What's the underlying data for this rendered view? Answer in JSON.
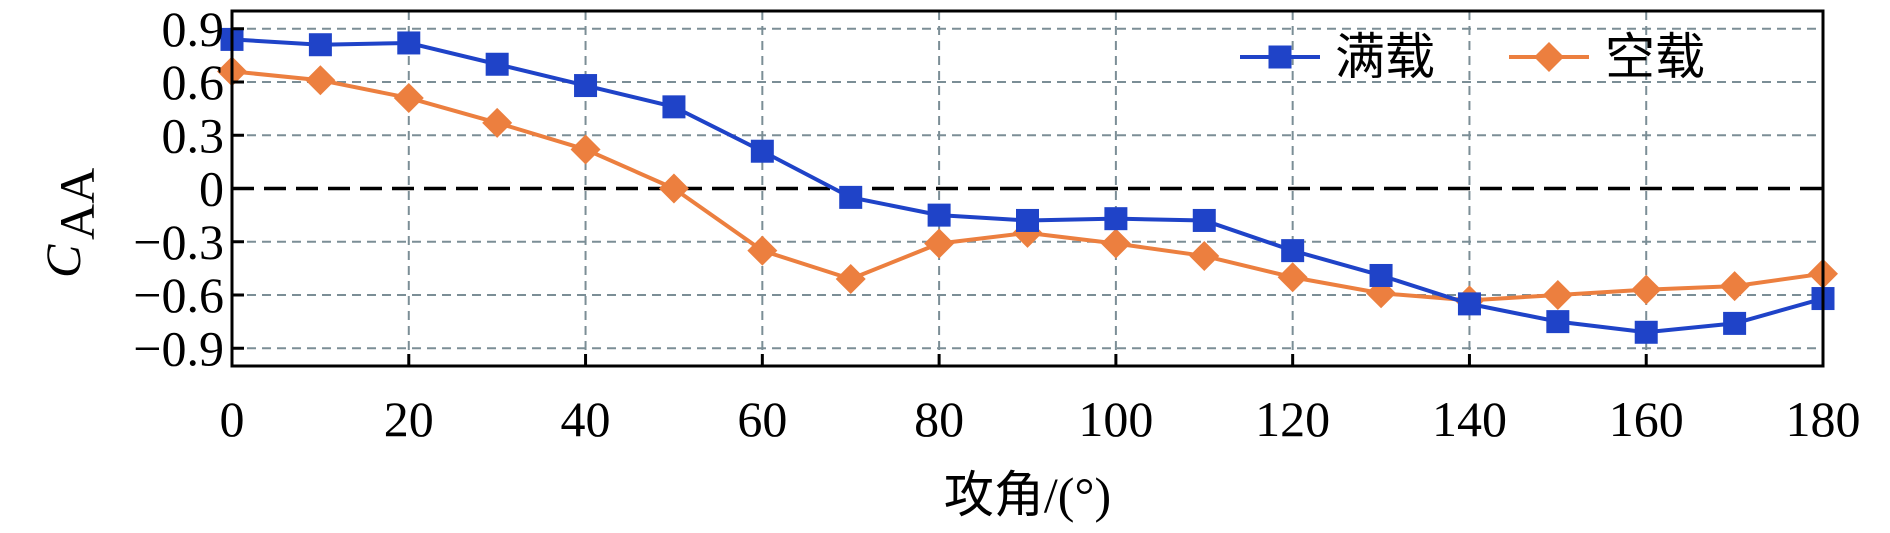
{
  "chart_data": {
    "type": "line",
    "xlabel": "攻角/(°)",
    "ylabel": {
      "main": "C",
      "sub": "AA"
    },
    "xlim": [
      0,
      180
    ],
    "ylim": [
      -1.0,
      1.0
    ],
    "xticks": [
      0,
      20,
      40,
      60,
      80,
      100,
      120,
      140,
      160,
      180
    ],
    "xtick_labels": [
      "0",
      "20",
      "40",
      "60",
      "80",
      "100",
      "120",
      "140",
      "160",
      "180"
    ],
    "yticks": [
      0.9,
      0.6,
      0.3,
      0,
      -0.3,
      -0.6,
      -0.9
    ],
    "ytick_labels": [
      "0.9",
      "0.6",
      "0.3",
      "0",
      "−0.3",
      "−0.6",
      "−0.9"
    ],
    "grid": true,
    "zero_line": true,
    "legend_position": "top-right",
    "x": [
      0,
      10,
      20,
      30,
      40,
      50,
      60,
      70,
      80,
      90,
      100,
      110,
      120,
      130,
      140,
      150,
      160,
      170,
      180
    ],
    "series": [
      {
        "name": "满载",
        "color": "#1f43c8",
        "marker": "square",
        "values": [
          0.84,
          0.81,
          0.82,
          0.7,
          0.58,
          0.46,
          0.21,
          -0.05,
          -0.15,
          -0.18,
          -0.17,
          -0.18,
          -0.35,
          -0.49,
          -0.65,
          -0.75,
          -0.81,
          -0.76,
          -0.62
        ]
      },
      {
        "name": "空载",
        "color": "#ec7f3f",
        "marker": "diamond",
        "values": [
          0.66,
          0.61,
          0.51,
          0.37,
          0.22,
          0.0,
          -0.35,
          -0.51,
          -0.31,
          -0.25,
          -0.31,
          -0.38,
          -0.5,
          -0.59,
          -0.63,
          -0.6,
          -0.57,
          -0.55,
          -0.48
        ]
      }
    ]
  }
}
